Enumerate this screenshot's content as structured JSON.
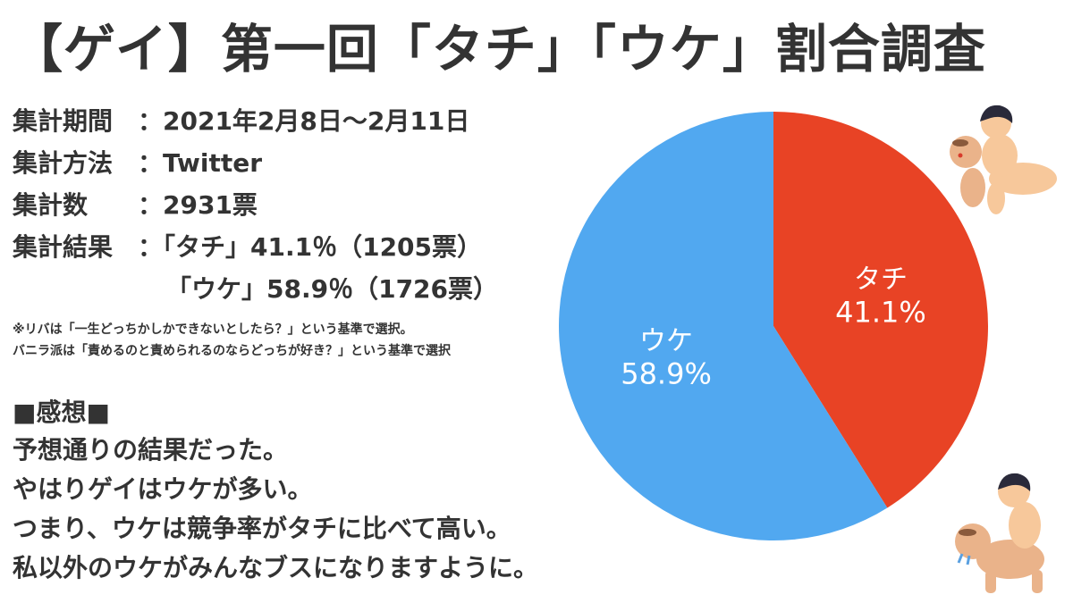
{
  "title": "【ゲイ】第一回「タチ」「ウケ」割合調査",
  "info": {
    "period_label": "集計期間",
    "period_value": "：2021年2月8日～2月11日",
    "method_label": "集計方法",
    "method_value": "：Twitter",
    "count_label": "集計数",
    "count_value": "：2931票",
    "result_label": "集計結果",
    "result_line1": "：「タチ」41.1％（1205票）",
    "result_line2": "「ウケ」58.9％（1726票）"
  },
  "notes": {
    "line1": "※リバは「一生どっちかしかできないとしたら？」という基準で選択。",
    "line2": "バニラ派は「責めるのと責められるのならどっちが好き？」という基準で選択"
  },
  "impressions": {
    "heading": "■感想■",
    "line1": "予想通りの結果だった。",
    "line2": "やはりゲイはウケが多い。",
    "line3": "つまり、ウケは競争率がタチに比べて高い。",
    "line4": "私以外のウケがみんなブスになりますように。"
  },
  "chart_data": {
    "type": "pie",
    "categories": [
      "タチ",
      "ウケ"
    ],
    "values": [
      41.1,
      58.9
    ],
    "value_labels": [
      "41.1%",
      "58.9%"
    ],
    "colors": [
      "#e84325",
      "#51a8f0"
    ]
  },
  "icons": {
    "illustration_top": "couple-illustration-icon",
    "illustration_bottom": "couple-illustration-icon"
  }
}
